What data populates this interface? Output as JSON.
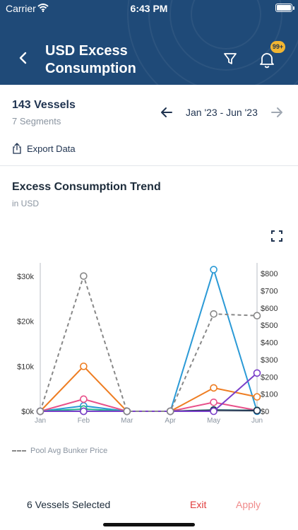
{
  "status_bar": {
    "carrier": "Carrier",
    "time": "6:43 PM"
  },
  "header": {
    "title": "USD Excess Consumption",
    "notification_badge": "99+",
    "back_icon": "chevron-left-icon",
    "filter_icon": "filter-icon",
    "bell_icon": "bell-icon",
    "background_color": "#1f4a78",
    "badge_color": "#f2b632"
  },
  "summary": {
    "vessel_count": "143 Vessels",
    "segment_count": "7 Segments",
    "date_range": "Jan '23 - Jun '23",
    "export_label": "Export Data"
  },
  "chart_section": {
    "title": "Excess Consumption Trend",
    "subtitle": "in USD",
    "legend_label": "Pool Avg Bunker Price"
  },
  "chart_data": {
    "type": "line",
    "categories": [
      "Jan",
      "Feb",
      "Mar",
      "Apr",
      "May",
      "Jun"
    ],
    "y_left_ticks": [
      "$0k",
      "$10k",
      "$20k",
      "$30k"
    ],
    "y_left_range": [
      0,
      33000
    ],
    "y_right_ticks": [
      "$0",
      "$100",
      "$200",
      "$300",
      "$400",
      "$500",
      "$600",
      "$700",
      "$800"
    ],
    "y_right_range": [
      0,
      800
    ],
    "series": [
      {
        "axis": "left",
        "color": "#2b9ad6",
        "dashed": false,
        "values": [
          0,
          1200,
          0,
          0,
          31500,
          0
        ]
      },
      {
        "axis": "left",
        "color": "#ee7d22",
        "dashed": false,
        "values": [
          0,
          10000,
          0,
          0,
          5200,
          3200
        ]
      },
      {
        "axis": "left",
        "color": "#e8508a",
        "dashed": false,
        "values": [
          0,
          2700,
          0,
          0,
          2000,
          200
        ]
      },
      {
        "axis": "left",
        "color": "#20b08c",
        "dashed": false,
        "values": [
          0,
          500,
          0,
          0,
          300,
          200
        ]
      },
      {
        "axis": "left",
        "color": "#1f3350",
        "dashed": false,
        "values": [
          0,
          0,
          0,
          0,
          250,
          150
        ]
      },
      {
        "axis": "left",
        "color": "#7a3fc9",
        "dashed": false,
        "values": [
          0,
          0,
          0,
          0,
          0,
          8500
        ]
      },
      {
        "name": "Pool Avg Bunker Price",
        "axis": "right",
        "color": "#888888",
        "dashed": true,
        "values": [
          0,
          785,
          0,
          0,
          565,
          555
        ]
      }
    ]
  },
  "footer": {
    "selected_label": "6 Vessels Selected",
    "exit_label": "Exit",
    "apply_label": "Apply",
    "exit_color": "#e03b3b",
    "apply_color": "#f08a8a"
  }
}
